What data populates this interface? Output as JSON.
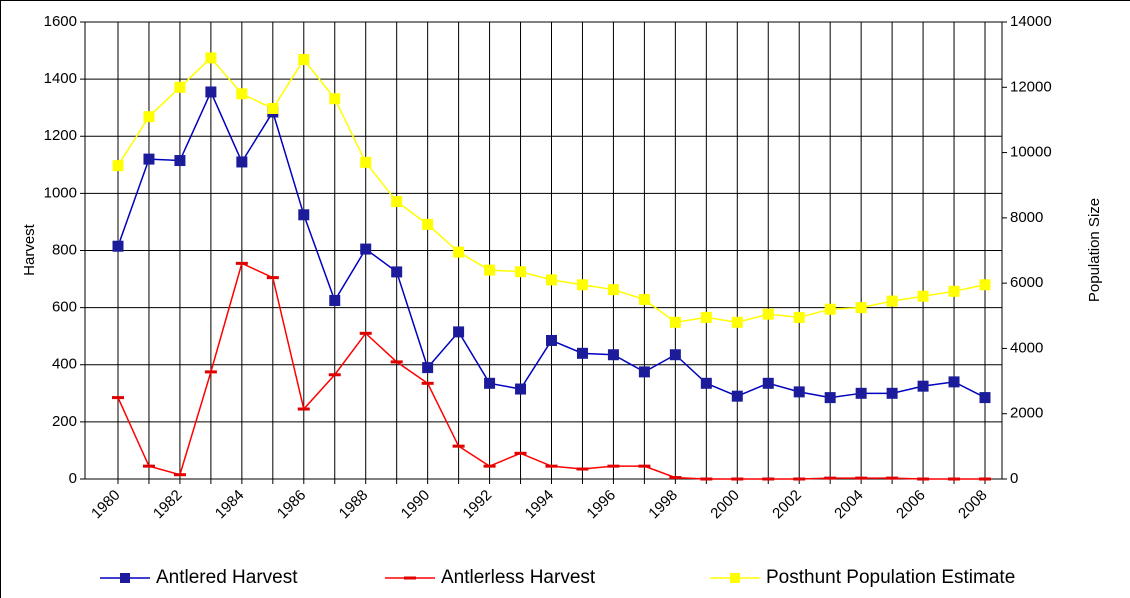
{
  "chart_data": {
    "type": "line",
    "categories": [
      "1980",
      null,
      "1982",
      null,
      "1984",
      null,
      "1986",
      null,
      "1988",
      null,
      "1990",
      null,
      "1992",
      null,
      "1994",
      null,
      "1996",
      null,
      "1998",
      null,
      "2000",
      null,
      "2002",
      null,
      "2004",
      null,
      "2006",
      null,
      "2008"
    ],
    "y_label": "Harvest",
    "y2_label": "Population Size",
    "ylim": [
      0,
      1600
    ],
    "yticks": [
      0,
      200,
      400,
      600,
      800,
      1000,
      1200,
      1400,
      1600
    ],
    "y2lim": [
      0,
      14000
    ],
    "y2ticks": [
      0,
      2000,
      4000,
      6000,
      8000,
      10000,
      12000,
      14000
    ],
    "grid": true,
    "legend": "bottom",
    "series": [
      {
        "name": "Antlered Harvest",
        "color": "#0000c0",
        "marker": "square",
        "marker_color": "#1c1c9a",
        "values": [
          815,
          1120,
          1115,
          1355,
          1110,
          1285,
          925,
          625,
          805,
          725,
          390,
          515,
          335,
          315,
          485,
          440,
          435,
          375,
          435,
          335,
          290,
          335,
          305,
          285,
          300,
          300,
          325,
          340,
          285
        ]
      },
      {
        "name": "Antlerless Harvest",
        "color": "#ff0000",
        "marker": "dash",
        "marker_color": "#e00000",
        "values": [
          285,
          45,
          15,
          375,
          755,
          705,
          245,
          365,
          510,
          410,
          335,
          115,
          45,
          90,
          45,
          35,
          45,
          45,
          5,
          0,
          0,
          0,
          0,
          3,
          3,
          3,
          0,
          0,
          0
        ]
      },
      {
        "name": "Posthunt Population Estimate",
        "color": "#ffff00",
        "marker": "square",
        "marker_color": "#ffff00",
        "axis": "y2",
        "values": [
          9600,
          11100,
          12000,
          12900,
          11800,
          11350,
          12850,
          11650,
          9700,
          8500,
          7800,
          6950,
          6400,
          6350,
          6100,
          5950,
          5800,
          5500,
          4800,
          4950,
          4800,
          5050,
          4950,
          5200,
          5250,
          5450,
          5600,
          5750,
          5950
        ]
      }
    ]
  }
}
